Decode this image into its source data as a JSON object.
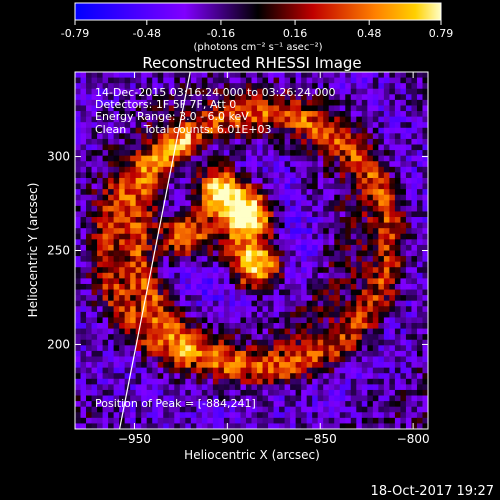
{
  "chart_data": {
    "type": "heatmap",
    "title": "Reconstructed RHESSI Image",
    "xlabel": "Heliocentric X (arcsec)",
    "ylabel": "Heliocentric Y (arcsec)",
    "xlim": [
      -982,
      -792
    ],
    "ylim": [
      155,
      345
    ],
    "x_ticks": [
      -950,
      -900,
      -850,
      -800
    ],
    "y_ticks": [
      200,
      250,
      300
    ],
    "colorbar": {
      "min": -0.79,
      "max": 0.79,
      "tick_values": [
        -0.79,
        -0.48,
        -0.16,
        0.16,
        0.48,
        0.79
      ],
      "tick_labels": [
        "-0.79",
        "-0.48",
        "-0.16",
        "0.16",
        "0.48",
        "0.79"
      ],
      "unit_label": "(photons cm⁻² s⁻¹ asec⁻²)"
    },
    "annotations": {
      "time_range": "14-Dec-2015 03:16:24.000 to 03:26:24.000",
      "detectors": "Detectors: 1F 5F 7F, Att 0",
      "energy": "Energy Range: 3.0 - 6.0 keV",
      "clean": "Clean     Total counts: 6.01E+03",
      "peak": "Position of Peak = [-884,241]"
    },
    "sources": [
      {
        "x": -904,
        "y": 283,
        "value": 0.79
      },
      {
        "x": -884,
        "y": 241,
        "value": 0.79
      },
      {
        "x": -924,
        "y": 258,
        "value": 0.65
      },
      {
        "x": -888,
        "y": 270,
        "value": 0.6
      }
    ],
    "limb_line": [
      [
        -958,
        155
      ],
      [
        -920,
        345
      ]
    ]
  },
  "footer": {
    "timestamp": "18-Oct-2017 19:27"
  }
}
